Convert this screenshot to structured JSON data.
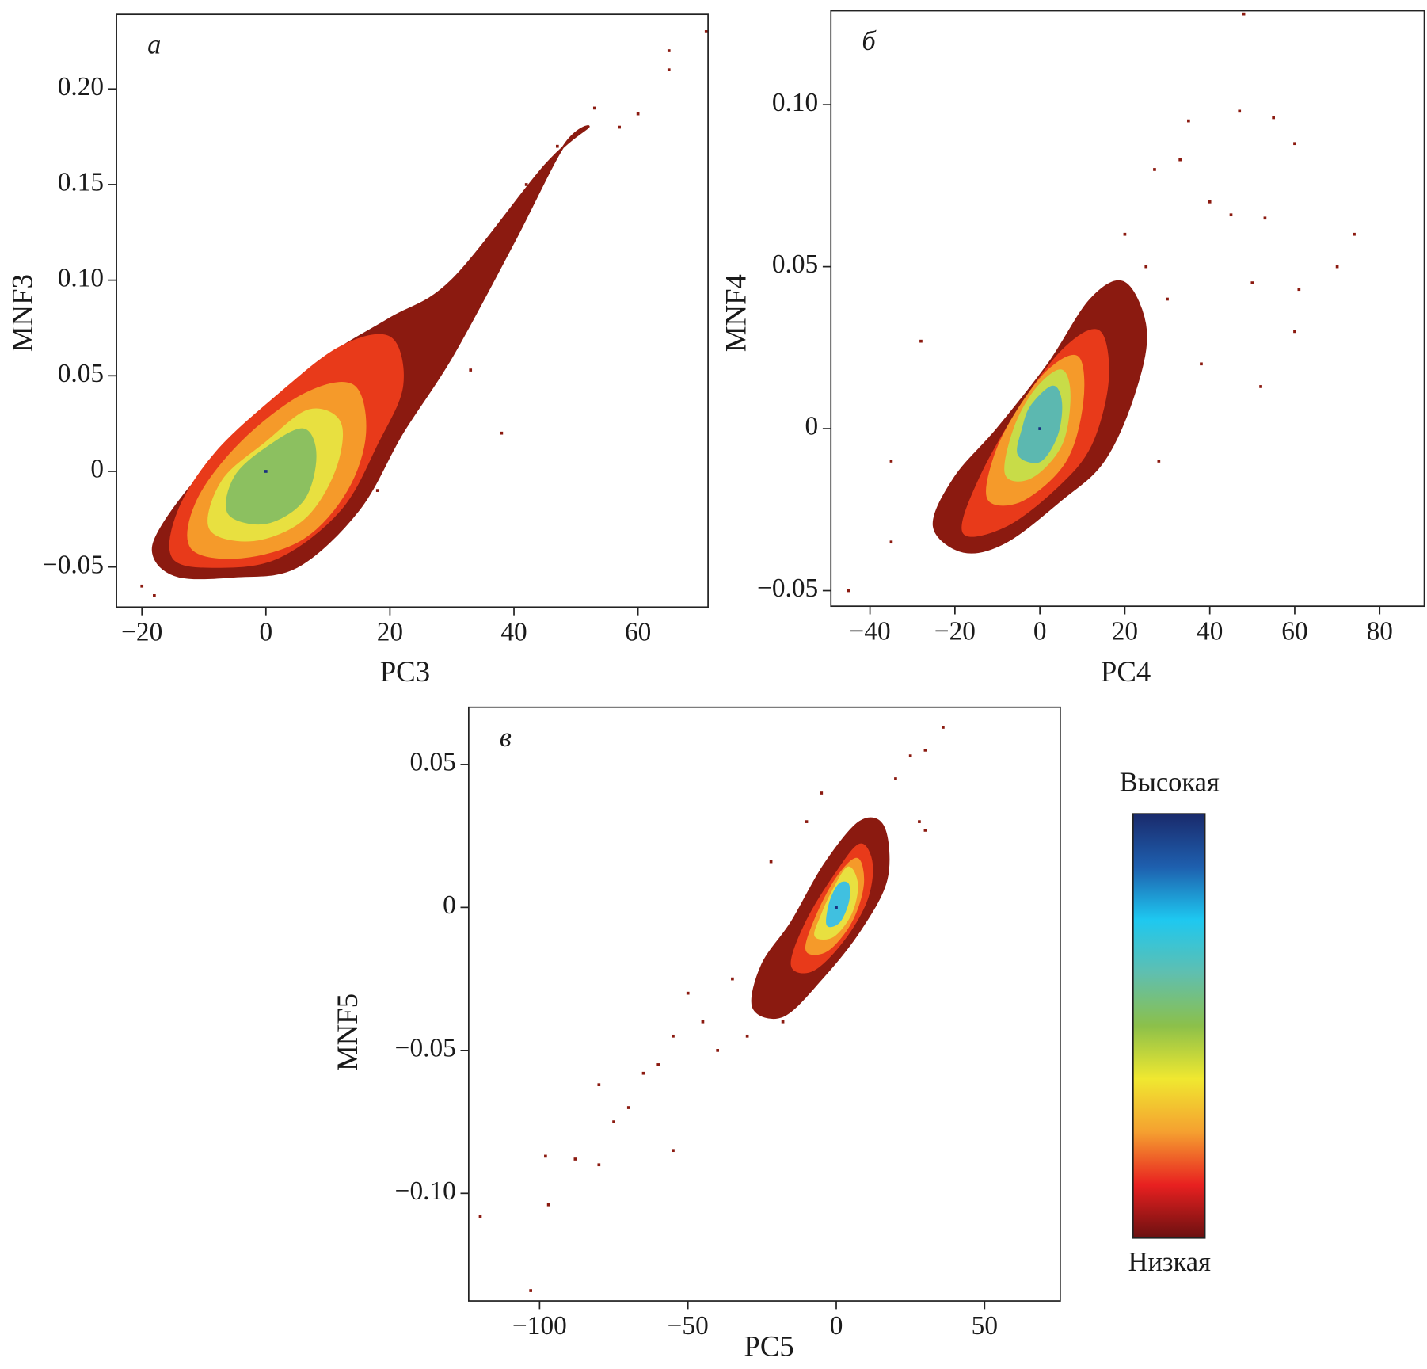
{
  "chart_data": [
    {
      "type": "density-scatter",
      "panel": "а",
      "xlabel": "PC3",
      "ylabel": "MNF3",
      "xlim": [
        -24.1,
        71.3
      ],
      "ylim": [
        -0.071,
        0.239
      ],
      "xticks": [
        {
          "value": -20,
          "label": "−20"
        },
        0,
        20,
        40,
        60
      ],
      "yticks": [
        {
          "value": -0.05,
          "label": "−0.05"
        },
        0,
        0.05,
        {
          "value": 0.1,
          "label": "0.10"
        },
        0.15,
        {
          "value": 0.2,
          "label": "0.20"
        }
      ],
      "series": [
        {
          "kind": "region",
          "color": "#8b1a10",
          "x": [
            -18,
            -14,
            -5,
            5,
            15,
            22,
            30,
            40,
            48,
            52,
            45,
            30,
            20,
            10,
            0,
            -10,
            -17
          ],
          "y": [
            -0.045,
            -0.055,
            -0.055,
            -0.05,
            -0.02,
            0.02,
            0.06,
            0.12,
            0.17,
            0.18,
            0.16,
            0.1,
            0.08,
            0.06,
            0.03,
            0,
            -0.03
          ]
        },
        {
          "kind": "region",
          "color": "#e83a1a",
          "x": [
            -15,
            -8,
            2,
            12,
            18,
            22,
            20,
            12,
            2,
            -8,
            -14
          ],
          "y": [
            -0.045,
            -0.05,
            -0.045,
            -0.02,
            0.015,
            0.045,
            0.07,
            0.065,
            0.04,
            0.01,
            -0.02
          ]
        },
        {
          "kind": "region",
          "color": "#f59a2a",
          "x": [
            -12,
            -4,
            6,
            13,
            16,
            14,
            6,
            -4,
            -11
          ],
          "y": [
            -0.04,
            -0.045,
            -0.035,
            -0.01,
            0.02,
            0.045,
            0.04,
            0.015,
            -0.015
          ]
        },
        {
          "kind": "region",
          "color": "#e8e040",
          "x": [
            -9,
            -2,
            6,
            11,
            12,
            7,
            0,
            -7
          ],
          "y": [
            -0.03,
            -0.036,
            -0.025,
            0,
            0.025,
            0.032,
            0.015,
            -0.005
          ]
        },
        {
          "kind": "region",
          "color": "#8cc060",
          "x": [
            -6,
            0,
            6,
            8,
            6,
            0,
            -5
          ],
          "y": [
            -0.022,
            -0.027,
            -0.015,
            0.008,
            0.022,
            0.012,
            -0.003
          ]
        },
        {
          "kind": "points",
          "color": "#8b1a10",
          "x": [
            65,
            65,
            71,
            57,
            53,
            60,
            33,
            38,
            18,
            -18,
            -20,
            47,
            42
          ],
          "y": [
            0.22,
            0.21,
            0.23,
            0.18,
            0.19,
            0.187,
            0.053,
            0.02,
            -0.01,
            -0.065,
            -0.06,
            0.17,
            0.15
          ]
        },
        {
          "kind": "points",
          "color": "#1a3080",
          "x": [
            0
          ],
          "y": [
            0
          ]
        }
      ]
    },
    {
      "type": "density-scatter",
      "panel": "б",
      "xlabel": "PC4",
      "ylabel": "MNF4",
      "xlim": [
        -49.2,
        90.5
      ],
      "ylim": [
        -0.0548,
        0.129
      ],
      "xticks": [
        {
          "value": -40,
          "label": "−40"
        },
        {
          "value": -20,
          "label": "−20"
        },
        0,
        20,
        40,
        60,
        80
      ],
      "yticks": [
        {
          "value": -0.05,
          "label": "−0.05"
        },
        0,
        0.05,
        {
          "value": 0.1,
          "label": "0.10"
        }
      ],
      "series": [
        {
          "kind": "region",
          "color": "#8b1a10",
          "x": [
            -25,
            -18,
            -8,
            5,
            15,
            22,
            25,
            20,
            12,
            2,
            -10,
            -20
          ],
          "y": [
            -0.03,
            -0.038,
            -0.035,
            -0.022,
            -0.01,
            0.01,
            0.03,
            0.045,
            0.04,
            0.02,
            0,
            -0.015
          ]
        },
        {
          "kind": "region",
          "color": "#e83a1a",
          "x": [
            -18,
            -8,
            4,
            12,
            16,
            14,
            6,
            -4,
            -14
          ],
          "y": [
            -0.032,
            -0.03,
            -0.018,
            -0.005,
            0.015,
            0.03,
            0.025,
            0.008,
            -0.015
          ]
        },
        {
          "kind": "region",
          "color": "#f59a2a",
          "x": [
            -12,
            -4,
            6,
            10,
            9,
            2,
            -6,
            -11
          ],
          "y": [
            -0.022,
            -0.022,
            -0.01,
            0.008,
            0.022,
            0.018,
            0.004,
            -0.01
          ]
        },
        {
          "kind": "region",
          "color": "#c8dc48",
          "x": [
            -8,
            -2,
            5,
            7,
            5,
            -1,
            -6
          ],
          "y": [
            -0.014,
            -0.015,
            -0.005,
            0.01,
            0.018,
            0.012,
            0
          ]
        },
        {
          "kind": "region",
          "color": "#5cb8b0",
          "x": [
            -5,
            0,
            4,
            5,
            3,
            -2,
            -4
          ],
          "y": [
            -0.008,
            -0.01,
            -0.002,
            0.008,
            0.013,
            0.007,
            0
          ]
        },
        {
          "kind": "points",
          "color": "#8b1a10",
          "x": [
            -45,
            -35,
            -28,
            -35,
            35,
            47,
            55,
            60,
            74,
            70,
            53,
            27,
            33,
            40,
            45,
            61,
            60,
            52,
            50,
            38,
            30,
            25,
            20,
            48,
            28
          ],
          "y": [
            -0.05,
            -0.035,
            0.027,
            -0.01,
            0.095,
            0.098,
            0.096,
            0.088,
            0.06,
            0.05,
            0.065,
            0.08,
            0.083,
            0.07,
            0.066,
            0.043,
            0.03,
            0.013,
            0.045,
            0.02,
            0.04,
            0.05,
            0.06,
            0.128,
            -0.01
          ]
        },
        {
          "kind": "points",
          "color": "#1a3080",
          "x": [
            0
          ],
          "y": [
            0
          ]
        }
      ]
    },
    {
      "type": "density-scatter",
      "panel": "в",
      "xlabel": "PC5",
      "ylabel": "MNF5",
      "xlim": [
        -123.9,
        75.5
      ],
      "ylim": [
        -0.1376,
        0.07
      ],
      "xticks": [
        {
          "value": -100,
          "label": "−100"
        },
        {
          "value": -50,
          "label": "−50"
        },
        0,
        50
      ],
      "yticks": [
        {
          "value": -0.1,
          "label": "−0.10"
        },
        {
          "value": -0.05,
          "label": "−0.05"
        },
        0,
        0.05
      ],
      "series": [
        {
          "kind": "region",
          "color": "#8b1a10",
          "x": [
            -28,
            -18,
            -5,
            8,
            17,
            16,
            8,
            -4,
            -15,
            -25
          ],
          "y": [
            -0.035,
            -0.038,
            -0.025,
            -0.008,
            0.01,
            0.028,
            0.03,
            0.015,
            -0.005,
            -0.02
          ]
        },
        {
          "kind": "region",
          "color": "#e83a1a",
          "x": [
            -15,
            -8,
            2,
            10,
            12,
            8,
            0,
            -10
          ],
          "y": [
            -0.02,
            -0.022,
            -0.012,
            0.002,
            0.015,
            0.022,
            0.012,
            -0.005
          ]
        },
        {
          "kind": "region",
          "color": "#f59a2a",
          "x": [
            -10,
            -3,
            5,
            9,
            7,
            0,
            -7
          ],
          "y": [
            -0.015,
            -0.015,
            -0.005,
            0.008,
            0.017,
            0.01,
            -0.004
          ]
        },
        {
          "kind": "region",
          "color": "#e8e040",
          "x": [
            -7,
            -1,
            5,
            7,
            4,
            -1,
            -5
          ],
          "y": [
            -0.01,
            -0.01,
            -0.002,
            0.008,
            0.014,
            0.006,
            -0.003
          ]
        },
        {
          "kind": "region",
          "color": "#40c0e0",
          "x": [
            -3,
            1,
            4,
            4,
            1,
            -2
          ],
          "y": [
            -0.006,
            -0.005,
            0.002,
            0.008,
            0.008,
            0.002
          ]
        },
        {
          "kind": "points",
          "color": "#8b1a10",
          "x": [
            -103,
            -120,
            -97,
            -98,
            -88,
            -80,
            -80,
            -75,
            -70,
            -65,
            -55,
            -60,
            -55,
            -45,
            -50,
            -40,
            -35,
            -30,
            36,
            30,
            25,
            20,
            28,
            30,
            -22,
            -10,
            -5,
            -18
          ],
          "y": [
            -0.134,
            -0.108,
            -0.104,
            -0.087,
            -0.088,
            -0.09,
            -0.062,
            -0.075,
            -0.07,
            -0.058,
            -0.085,
            -0.055,
            -0.045,
            -0.04,
            -0.03,
            -0.05,
            -0.025,
            -0.045,
            0.063,
            0.055,
            0.053,
            0.045,
            0.03,
            0.027,
            0.016,
            0.03,
            0.04,
            -0.04
          ]
        },
        {
          "kind": "points",
          "color": "#1a3080",
          "x": [
            0
          ],
          "y": [
            0
          ]
        }
      ]
    }
  ],
  "colorbar": {
    "high": "Высокая",
    "low": "Низкая",
    "colors": [
      "#1a2a6c",
      "#1e5fae",
      "#1ec8f0",
      "#5fbfb0",
      "#8cc04a",
      "#f0e830",
      "#f5a030",
      "#e82020",
      "#6a1010"
    ]
  }
}
